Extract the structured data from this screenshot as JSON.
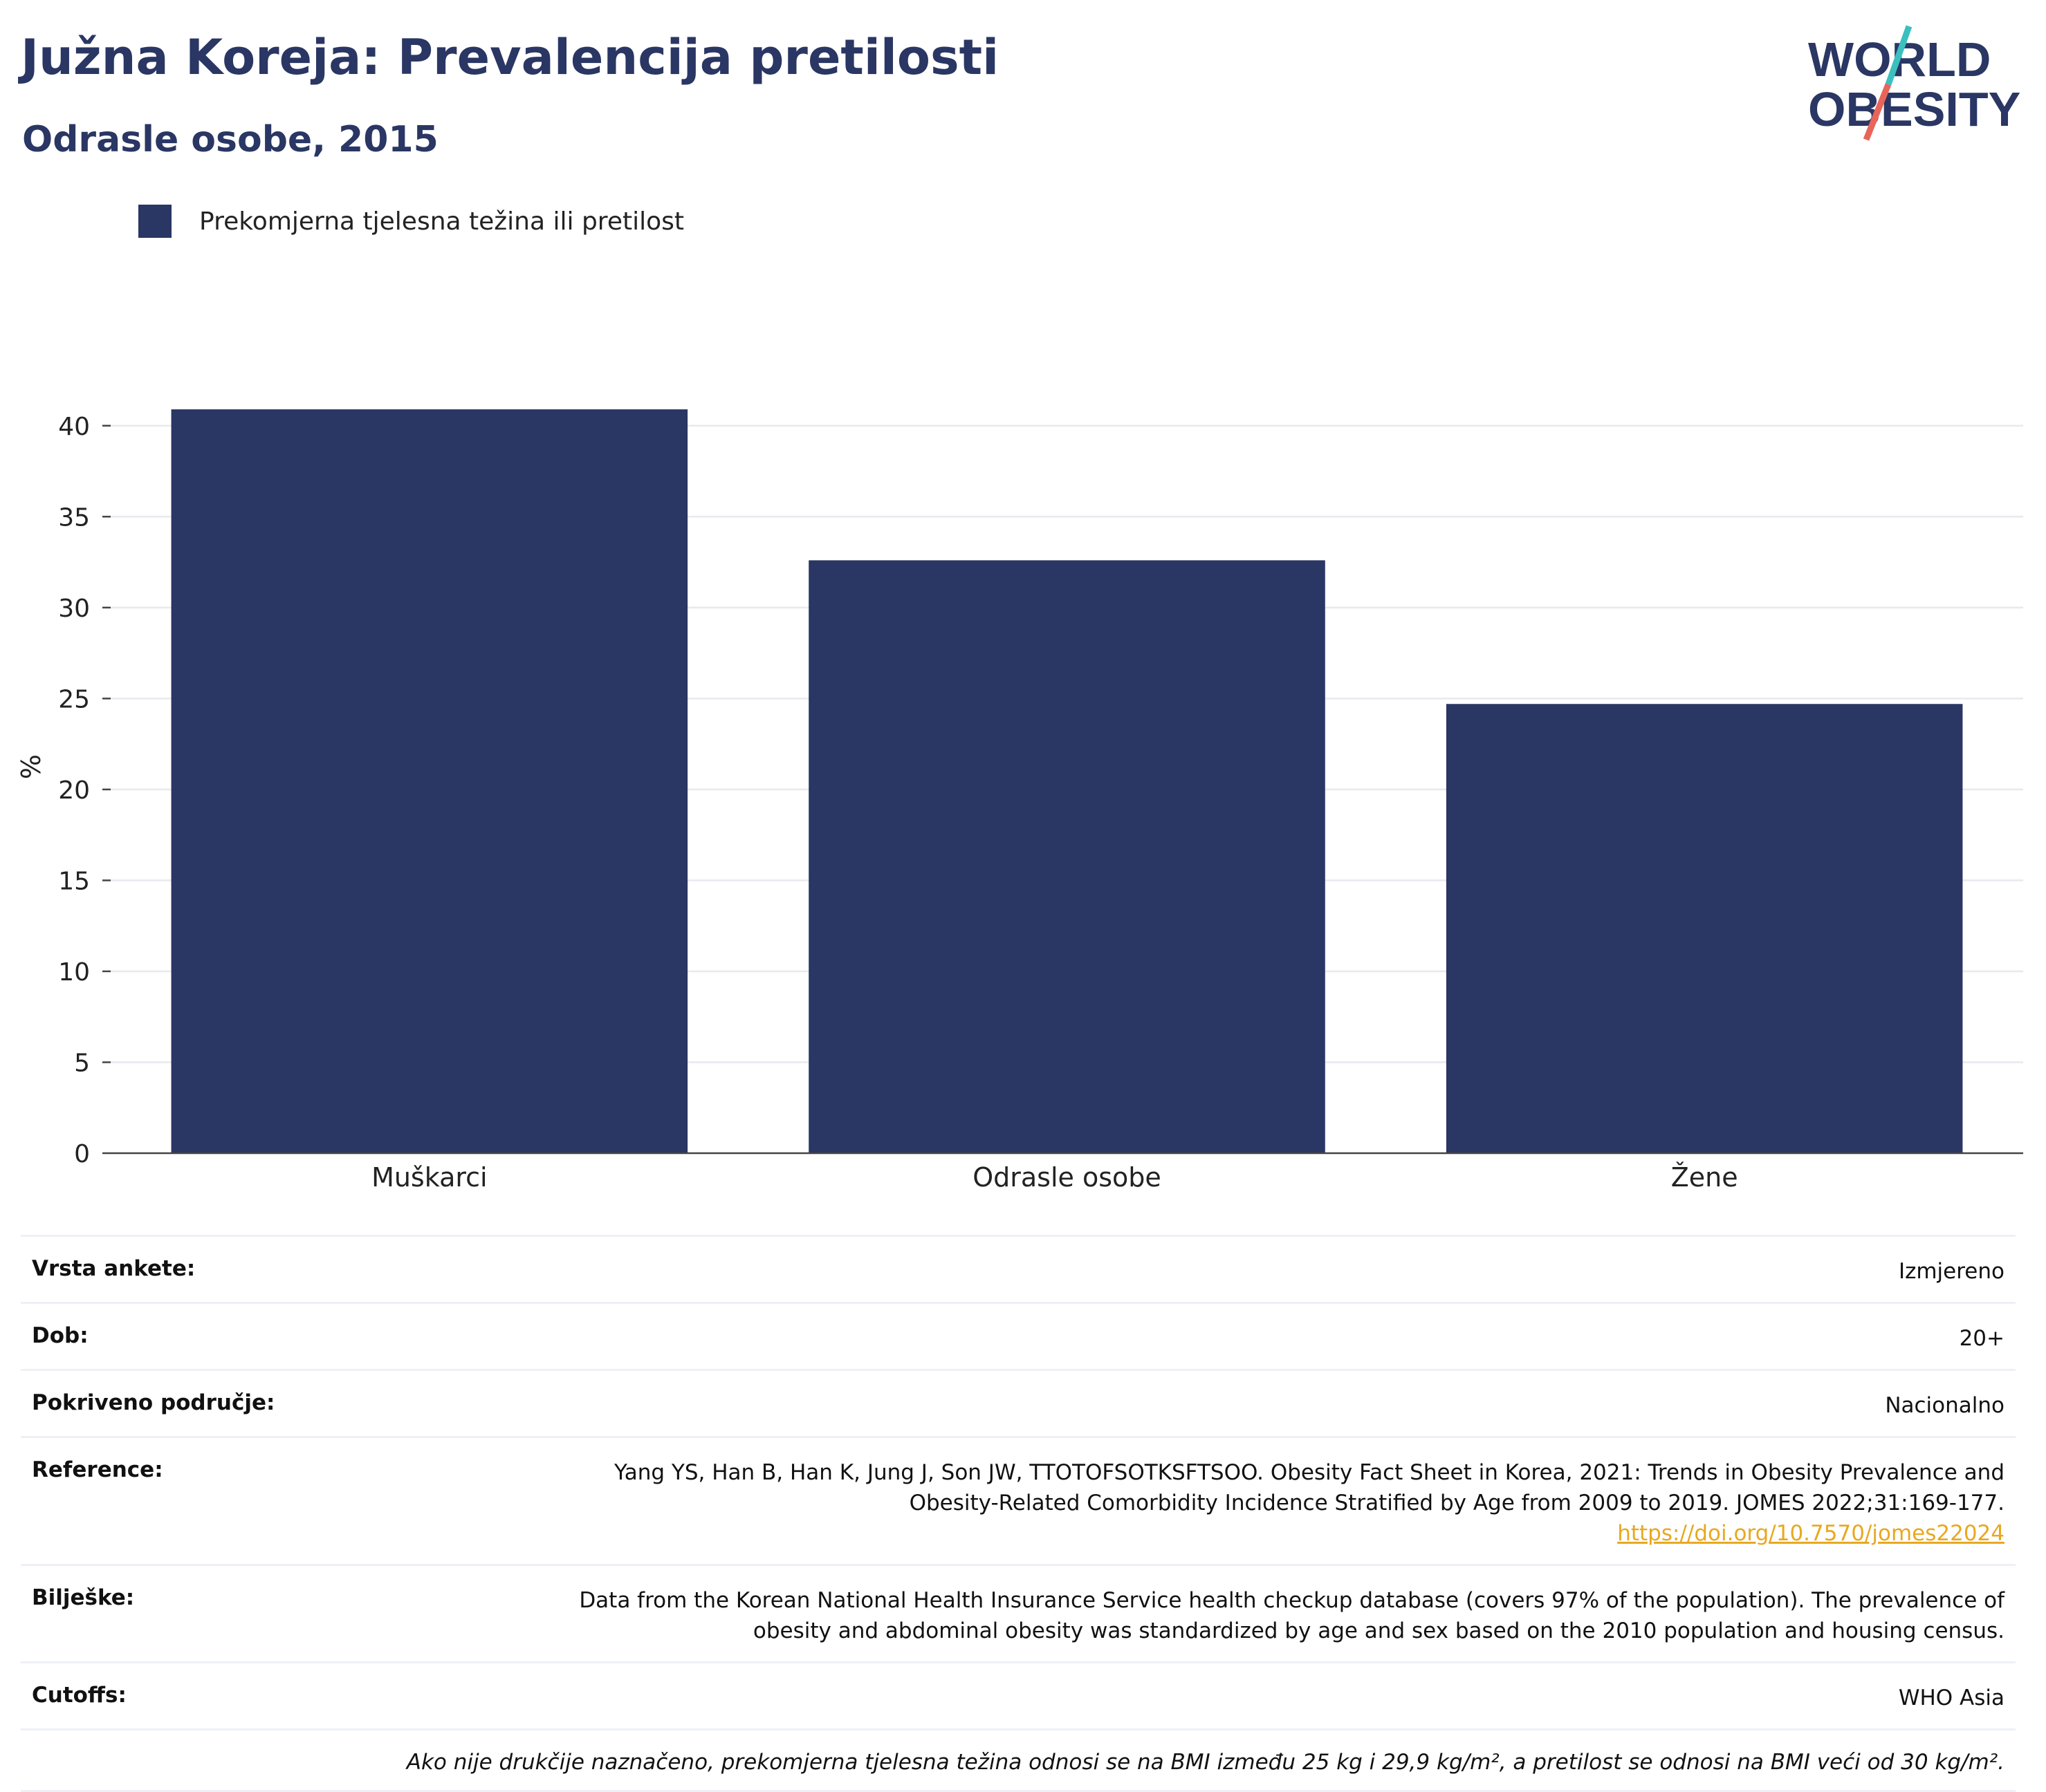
{
  "header": {
    "title": "Južna Koreja: Prevalencija pretilosti",
    "subtitle": "Odrasle osobe, 2015",
    "logo_line1": "WORLD",
    "logo_line2": "OBESITY"
  },
  "colors": {
    "bar": "#2a3663",
    "title": "#2a3663",
    "link": "#e8a820",
    "logo_teal": "#3bbfbf",
    "logo_red": "#e8655a"
  },
  "chart_data": {
    "type": "bar",
    "title": "Južna Koreja: Prevalencija pretilosti",
    "subtitle": "Odrasle osobe, 2015",
    "categories": [
      "Muškarci",
      "Odrasle osobe",
      "Žene"
    ],
    "series": [
      {
        "name": "Prekomjerna tjelesna težina ili pretilost",
        "values": [
          40.9,
          32.6,
          24.7
        ]
      }
    ],
    "xlabel": "",
    "ylabel": "%",
    "ylim": [
      0,
      42.5
    ],
    "yticks": [
      0,
      5,
      10,
      15,
      20,
      25,
      30,
      35,
      40
    ],
    "grid": true,
    "legend": "top-left"
  },
  "meta": {
    "rows": [
      {
        "key": "Vrsta ankete:",
        "value": "Izmjereno"
      },
      {
        "key": "Dob:",
        "value": "20+"
      },
      {
        "key": "Pokriveno područje:",
        "value": "Nacionalno"
      }
    ],
    "reference": {
      "key": "Reference:",
      "line1": "Yang YS, Han B, Han K, Jung J, Son JW, TTOTOFSOTKSFTSOO. Obesity Fact Sheet in Korea, 2021: Trends in Obesity Prevalence and",
      "line2": "Obesity-Related Comorbidity Incidence Stratified by Age from 2009 to 2019. JOMES 2022;31:169-177.",
      "link": "https://doi.org/10.7570/jomes22024"
    },
    "notes": {
      "key": "Bilješke:",
      "line1": "Data from the Korean National Health Insurance Service health checkup database (covers 97% of the population). The prevalence of",
      "line2": "obesity and abdominal obesity was standardized by age and sex based on the 2010 population and housing census."
    },
    "cutoffs": {
      "key": "Cutoffs:",
      "value": "WHO Asia"
    },
    "footnote": "Ako nije drukčije naznačeno, prekomjerna tjelesna težina odnosi se na BMI između 25 kg i 29,9 kg/m², a pretilost se odnosi na BMI veći od 30 kg/m²."
  }
}
